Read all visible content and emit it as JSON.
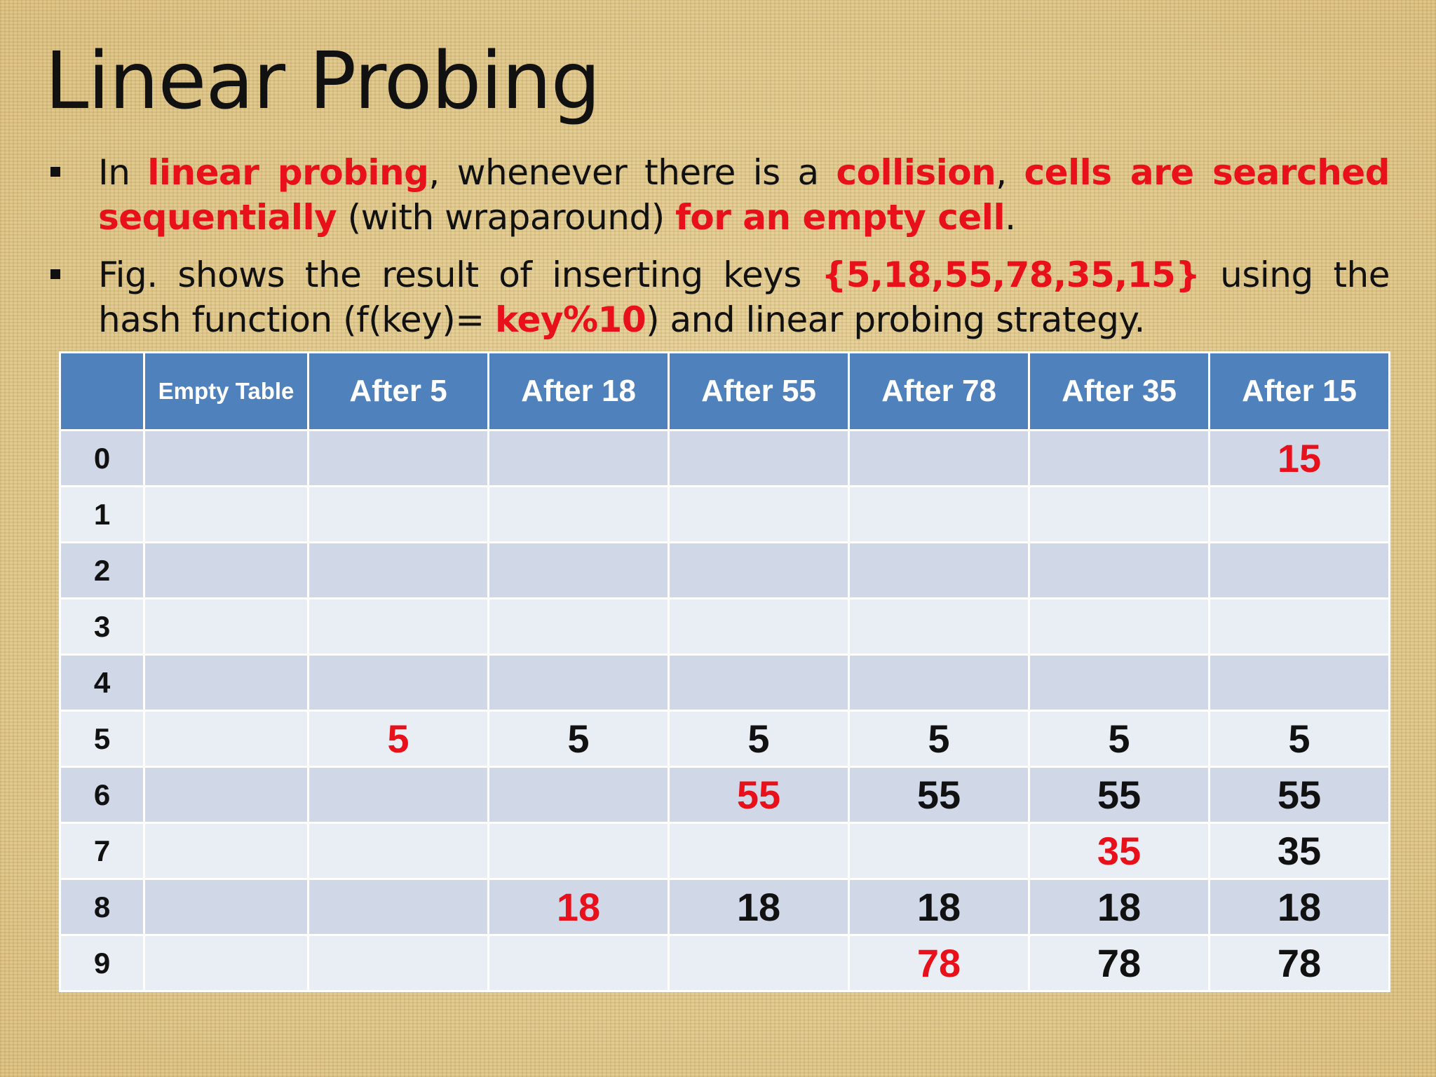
{
  "title": "Linear Probing",
  "bullets": [
    {
      "segments": [
        {
          "text": "In ",
          "highlight": false
        },
        {
          "text": "linear probing",
          "highlight": true
        },
        {
          "text": ", whenever there is a ",
          "highlight": false
        },
        {
          "text": "collision",
          "highlight": true
        },
        {
          "text": ", ",
          "highlight": false
        },
        {
          "text": "cells are searched sequentially",
          "highlight": true
        },
        {
          "text": " (with wraparound) ",
          "highlight": false
        },
        {
          "text": "for an empty cell",
          "highlight": true
        },
        {
          "text": ".",
          "highlight": false
        }
      ]
    },
    {
      "segments": [
        {
          "text": "Fig. shows the result of inserting keys ",
          "highlight": false
        },
        {
          "text": "{5,18,55,78,35,15}",
          "highlight": true
        },
        {
          "text": " using the hash function (f(key)= ",
          "highlight": false
        },
        {
          "text": "key%10",
          "highlight": true
        },
        {
          "text": ") and linear probing strategy.",
          "highlight": false
        }
      ]
    }
  ],
  "table": {
    "headers": [
      "",
      "Empty Table",
      "After 5",
      "After 18",
      "After 55",
      "After 78",
      "After 35",
      "After 15"
    ],
    "rows": [
      {
        "index": "0",
        "cells": [
          "",
          "",
          "",
          "",
          "",
          "",
          "15"
        ],
        "new_col": 6
      },
      {
        "index": "1",
        "cells": [
          "",
          "",
          "",
          "",
          "",
          "",
          ""
        ],
        "new_col": -1
      },
      {
        "index": "2",
        "cells": [
          "",
          "",
          "",
          "",
          "",
          "",
          ""
        ],
        "new_col": -1
      },
      {
        "index": "3",
        "cells": [
          "",
          "",
          "",
          "",
          "",
          "",
          ""
        ],
        "new_col": -1
      },
      {
        "index": "4",
        "cells": [
          "",
          "",
          "",
          "",
          "",
          "",
          ""
        ],
        "new_col": -1
      },
      {
        "index": "5",
        "cells": [
          "",
          "5",
          "5",
          "5",
          "5",
          "5",
          "5"
        ],
        "new_col": 1
      },
      {
        "index": "6",
        "cells": [
          "",
          "",
          "",
          "55",
          "55",
          "55",
          "55"
        ],
        "new_col": 3
      },
      {
        "index": "7",
        "cells": [
          "",
          "",
          "",
          "",
          "",
          "35",
          "35"
        ],
        "new_col": 5
      },
      {
        "index": "8",
        "cells": [
          "",
          "",
          "18",
          "18",
          "18",
          "18",
          "18"
        ],
        "new_col": 2
      },
      {
        "index": "9",
        "cells": [
          "",
          "",
          "",
          "",
          "78",
          "78",
          "78"
        ],
        "new_col": 4
      }
    ]
  },
  "colors": {
    "highlight": "#e8101a",
    "header_bg": "#4f81bd",
    "row_dark": "#d0d8e8",
    "row_light": "#e9edf4"
  }
}
